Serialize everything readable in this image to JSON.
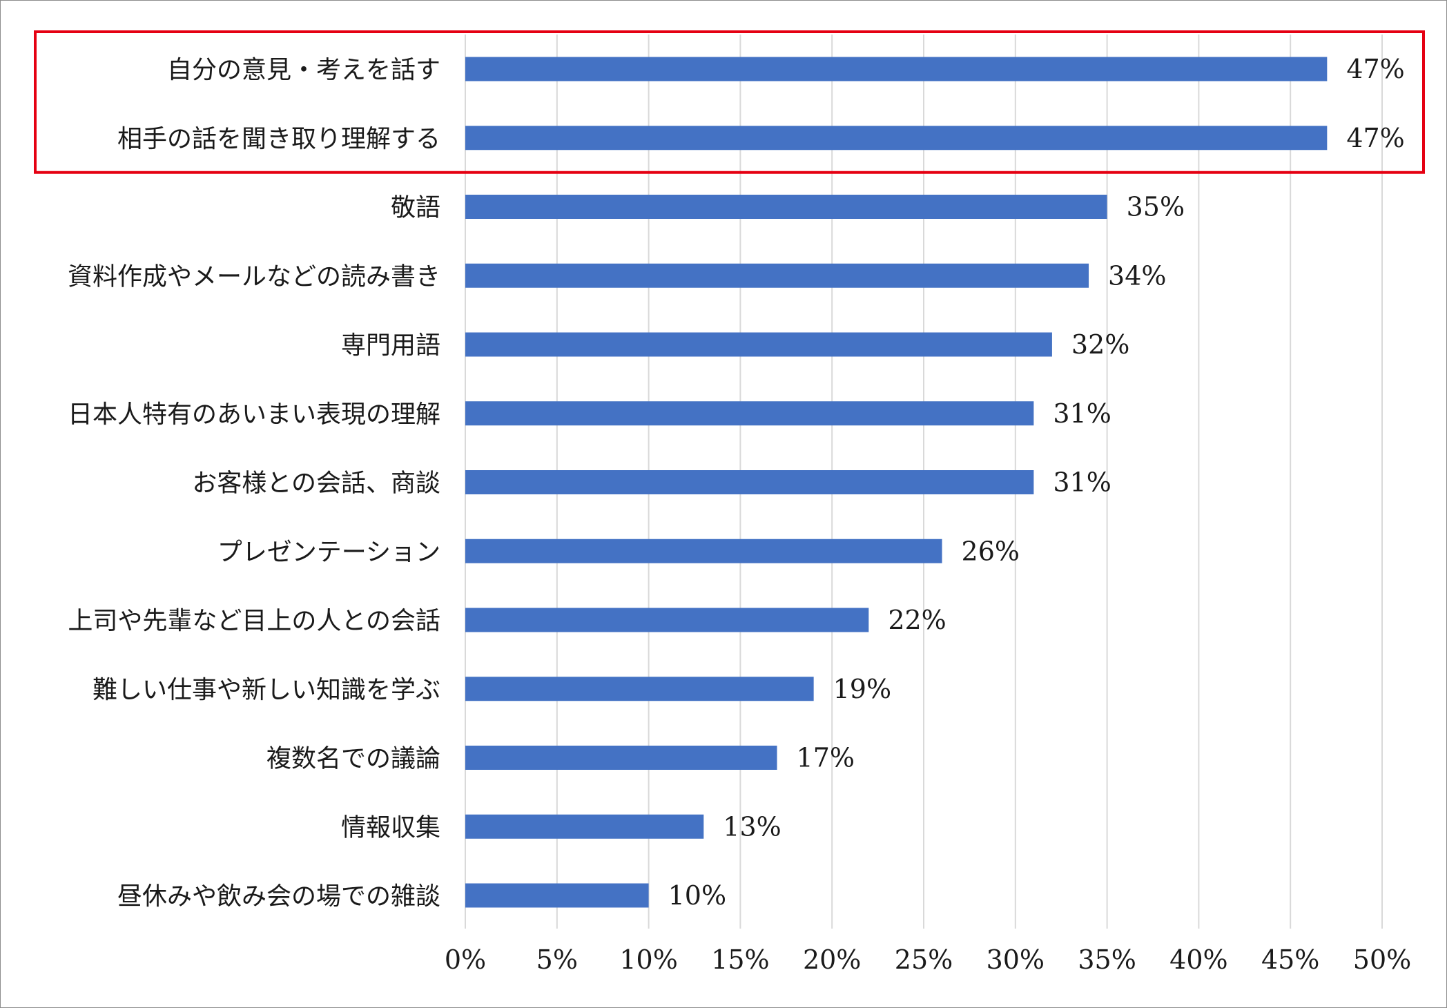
{
  "chart_data": {
    "type": "bar",
    "orientation": "horizontal",
    "categories": [
      "自分の意見・考えを話す",
      "相手の話を聞き取り理解する",
      "敬語",
      "資料作成やメールなどの読み書き",
      "専門用語",
      "日本人特有のあいまい表現の理解",
      "お客様との会話、商談",
      "プレゼンテーション",
      "上司や先輩など目上の人との会話",
      "難しい仕事や新しい知識を学ぶ",
      "複数名での議論",
      "情報収集",
      "昼休みや飲み会の場での雑談"
    ],
    "values": [
      47,
      47,
      35,
      34,
      32,
      31,
      31,
      26,
      22,
      19,
      17,
      13,
      10
    ],
    "value_labels": [
      "47%",
      "47%",
      "35%",
      "34%",
      "32%",
      "31%",
      "31%",
      "26%",
      "22%",
      "19%",
      "17%",
      "13%",
      "10%"
    ],
    "xlim": [
      0,
      50
    ],
    "x_ticks": [
      0,
      5,
      10,
      15,
      20,
      25,
      30,
      35,
      40,
      45,
      50
    ],
    "x_tick_labels": [
      "0%",
      "5%",
      "10%",
      "15%",
      "20%",
      "25%",
      "30%",
      "35%",
      "40%",
      "45%",
      "50%"
    ],
    "grid": "vertical",
    "legend": "none",
    "highlight": {
      "categories": [
        0,
        1
      ],
      "color": "#e50012"
    },
    "colors": {
      "bar": "#4472c4",
      "grid": "#d9d9d9",
      "frame": "#8c8c8c"
    },
    "title": "",
    "xlabel": "",
    "ylabel": ""
  }
}
